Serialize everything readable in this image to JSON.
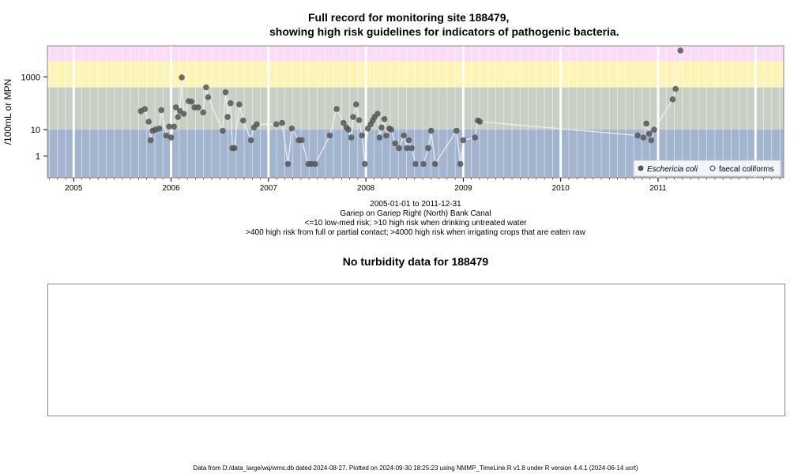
{
  "header": {
    "title_line1": "Full record for monitoring site 188479,",
    "title_line2": "showing high risk guidelines for indicators of pathogenic bacteria."
  },
  "chart_data": {
    "type": "scatter",
    "ylabel": "/100mL or MPN",
    "scale": "log",
    "yticks": [
      1,
      10,
      1000
    ],
    "xticks": [
      "2005",
      "2006",
      "2007",
      "2008",
      "2009",
      "2010",
      "2011"
    ],
    "xlim": [
      2004.73,
      2012.29
    ],
    "ylim": [
      0.15,
      15000
    ],
    "risk_bands": [
      {
        "from": 0.15,
        "to": 10,
        "color": "#a3b4cf"
      },
      {
        "from": 10,
        "to": 400,
        "color": "#c8d0c5"
      },
      {
        "from": 400,
        "to": 4000,
        "color": "#fdf5b8"
      },
      {
        "from": 4000,
        "to": 15000,
        "color": "#fbdcf6"
      }
    ],
    "legend": {
      "position": "bottom-right",
      "entries": [
        "Eschericia coli",
        "faecal coliforms"
      ]
    },
    "series": [
      {
        "name": "Eschericia coli",
        "color": "#555555",
        "points": [
          [
            2005.69,
            50
          ],
          [
            2005.73,
            60
          ],
          [
            2005.77,
            20
          ],
          [
            2005.79,
            4
          ],
          [
            2005.81,
            9
          ],
          [
            2005.84,
            10
          ],
          [
            2005.88,
            11
          ],
          [
            2005.9,
            55
          ],
          [
            2005.95,
            6
          ],
          [
            2005.98,
            13
          ],
          [
            2006.0,
            5
          ],
          [
            2006.03,
            13
          ],
          [
            2006.05,
            70
          ],
          [
            2006.07,
            30
          ],
          [
            2006.09,
            50
          ],
          [
            2006.11,
            950
          ],
          [
            2006.13,
            40
          ],
          [
            2006.18,
            120
          ],
          [
            2006.21,
            115
          ],
          [
            2006.24,
            70
          ],
          [
            2006.28,
            70
          ],
          [
            2006.33,
            45
          ],
          [
            2006.36,
            400
          ],
          [
            2006.38,
            170
          ],
          [
            2006.53,
            9
          ],
          [
            2006.56,
            260
          ],
          [
            2006.58,
            30
          ],
          [
            2006.61,
            100
          ],
          [
            2006.63,
            2
          ],
          [
            2006.65,
            2
          ],
          [
            2006.7,
            90
          ],
          [
            2006.74,
            22
          ],
          [
            2006.82,
            4
          ],
          [
            2006.85,
            12
          ],
          [
            2006.88,
            16
          ],
          [
            2007.08,
            16
          ],
          [
            2007.14,
            18
          ],
          [
            2007.2,
            0.5
          ],
          [
            2007.24,
            11
          ],
          [
            2007.31,
            4
          ],
          [
            2007.34,
            4
          ],
          [
            2007.41,
            0.5
          ],
          [
            2007.44,
            0.5
          ],
          [
            2007.48,
            0.5
          ],
          [
            2007.63,
            6
          ],
          [
            2007.7,
            60
          ],
          [
            2007.77,
            18
          ],
          [
            2007.8,
            12
          ],
          [
            2007.82,
            10
          ],
          [
            2007.85,
            5
          ],
          [
            2007.87,
            30
          ],
          [
            2007.9,
            90
          ],
          [
            2007.93,
            23
          ],
          [
            2007.96,
            6
          ],
          [
            2007.99,
            0.5
          ],
          [
            2008.02,
            11
          ],
          [
            2008.05,
            16
          ],
          [
            2008.07,
            22
          ],
          [
            2008.09,
            30
          ],
          [
            2008.12,
            40
          ],
          [
            2008.14,
            5
          ],
          [
            2008.16,
            12
          ],
          [
            2008.19,
            25
          ],
          [
            2008.21,
            6
          ],
          [
            2008.24,
            11
          ],
          [
            2008.26,
            10
          ],
          [
            2008.3,
            3
          ],
          [
            2008.34,
            2
          ],
          [
            2008.39,
            6
          ],
          [
            2008.42,
            2
          ],
          [
            2008.44,
            4
          ],
          [
            2008.47,
            2
          ],
          [
            2008.51,
            0.5
          ],
          [
            2008.59,
            0.5
          ],
          [
            2008.64,
            2
          ],
          [
            2008.67,
            9
          ],
          [
            2008.71,
            0.5
          ],
          [
            2008.93,
            9
          ],
          [
            2008.97,
            0.5
          ],
          [
            2009.0,
            4
          ],
          [
            2009.12,
            5
          ],
          [
            2009.15,
            22
          ],
          [
            2009.17,
            20
          ],
          [
            2010.79,
            6
          ],
          [
            2010.85,
            5
          ],
          [
            2010.88,
            17
          ],
          [
            2010.91,
            7
          ],
          [
            2010.93,
            4
          ],
          [
            2010.96,
            10
          ],
          [
            2011.15,
            140
          ],
          [
            2011.18,
            350
          ],
          [
            2011.23,
            10000
          ]
        ]
      },
      {
        "name": "faecal coliforms",
        "color": "#555555",
        "points": []
      }
    ]
  },
  "info": {
    "date_range": "2005-01-01 to 2011-12-31",
    "site_name": "Gariep on Gariep Right (North) Bank Canal",
    "guideline_1": "<=10 low-med risk; >10 high risk when drinking untreated water",
    "guideline_2": ">400 high risk from full or partial contact; >4000 high risk when irrigating crops that are eaten raw"
  },
  "turbidity": {
    "title": "No turbidity data for 188479"
  },
  "footer": "Data from D:/data_large/wq/wms.db dated 2024-08-27. Plotted on 2024-09-30 18:25:23 using NMMP_TimeLine.R v1.8 under R version 4.4.1 (2024-06-14 ucrt)"
}
